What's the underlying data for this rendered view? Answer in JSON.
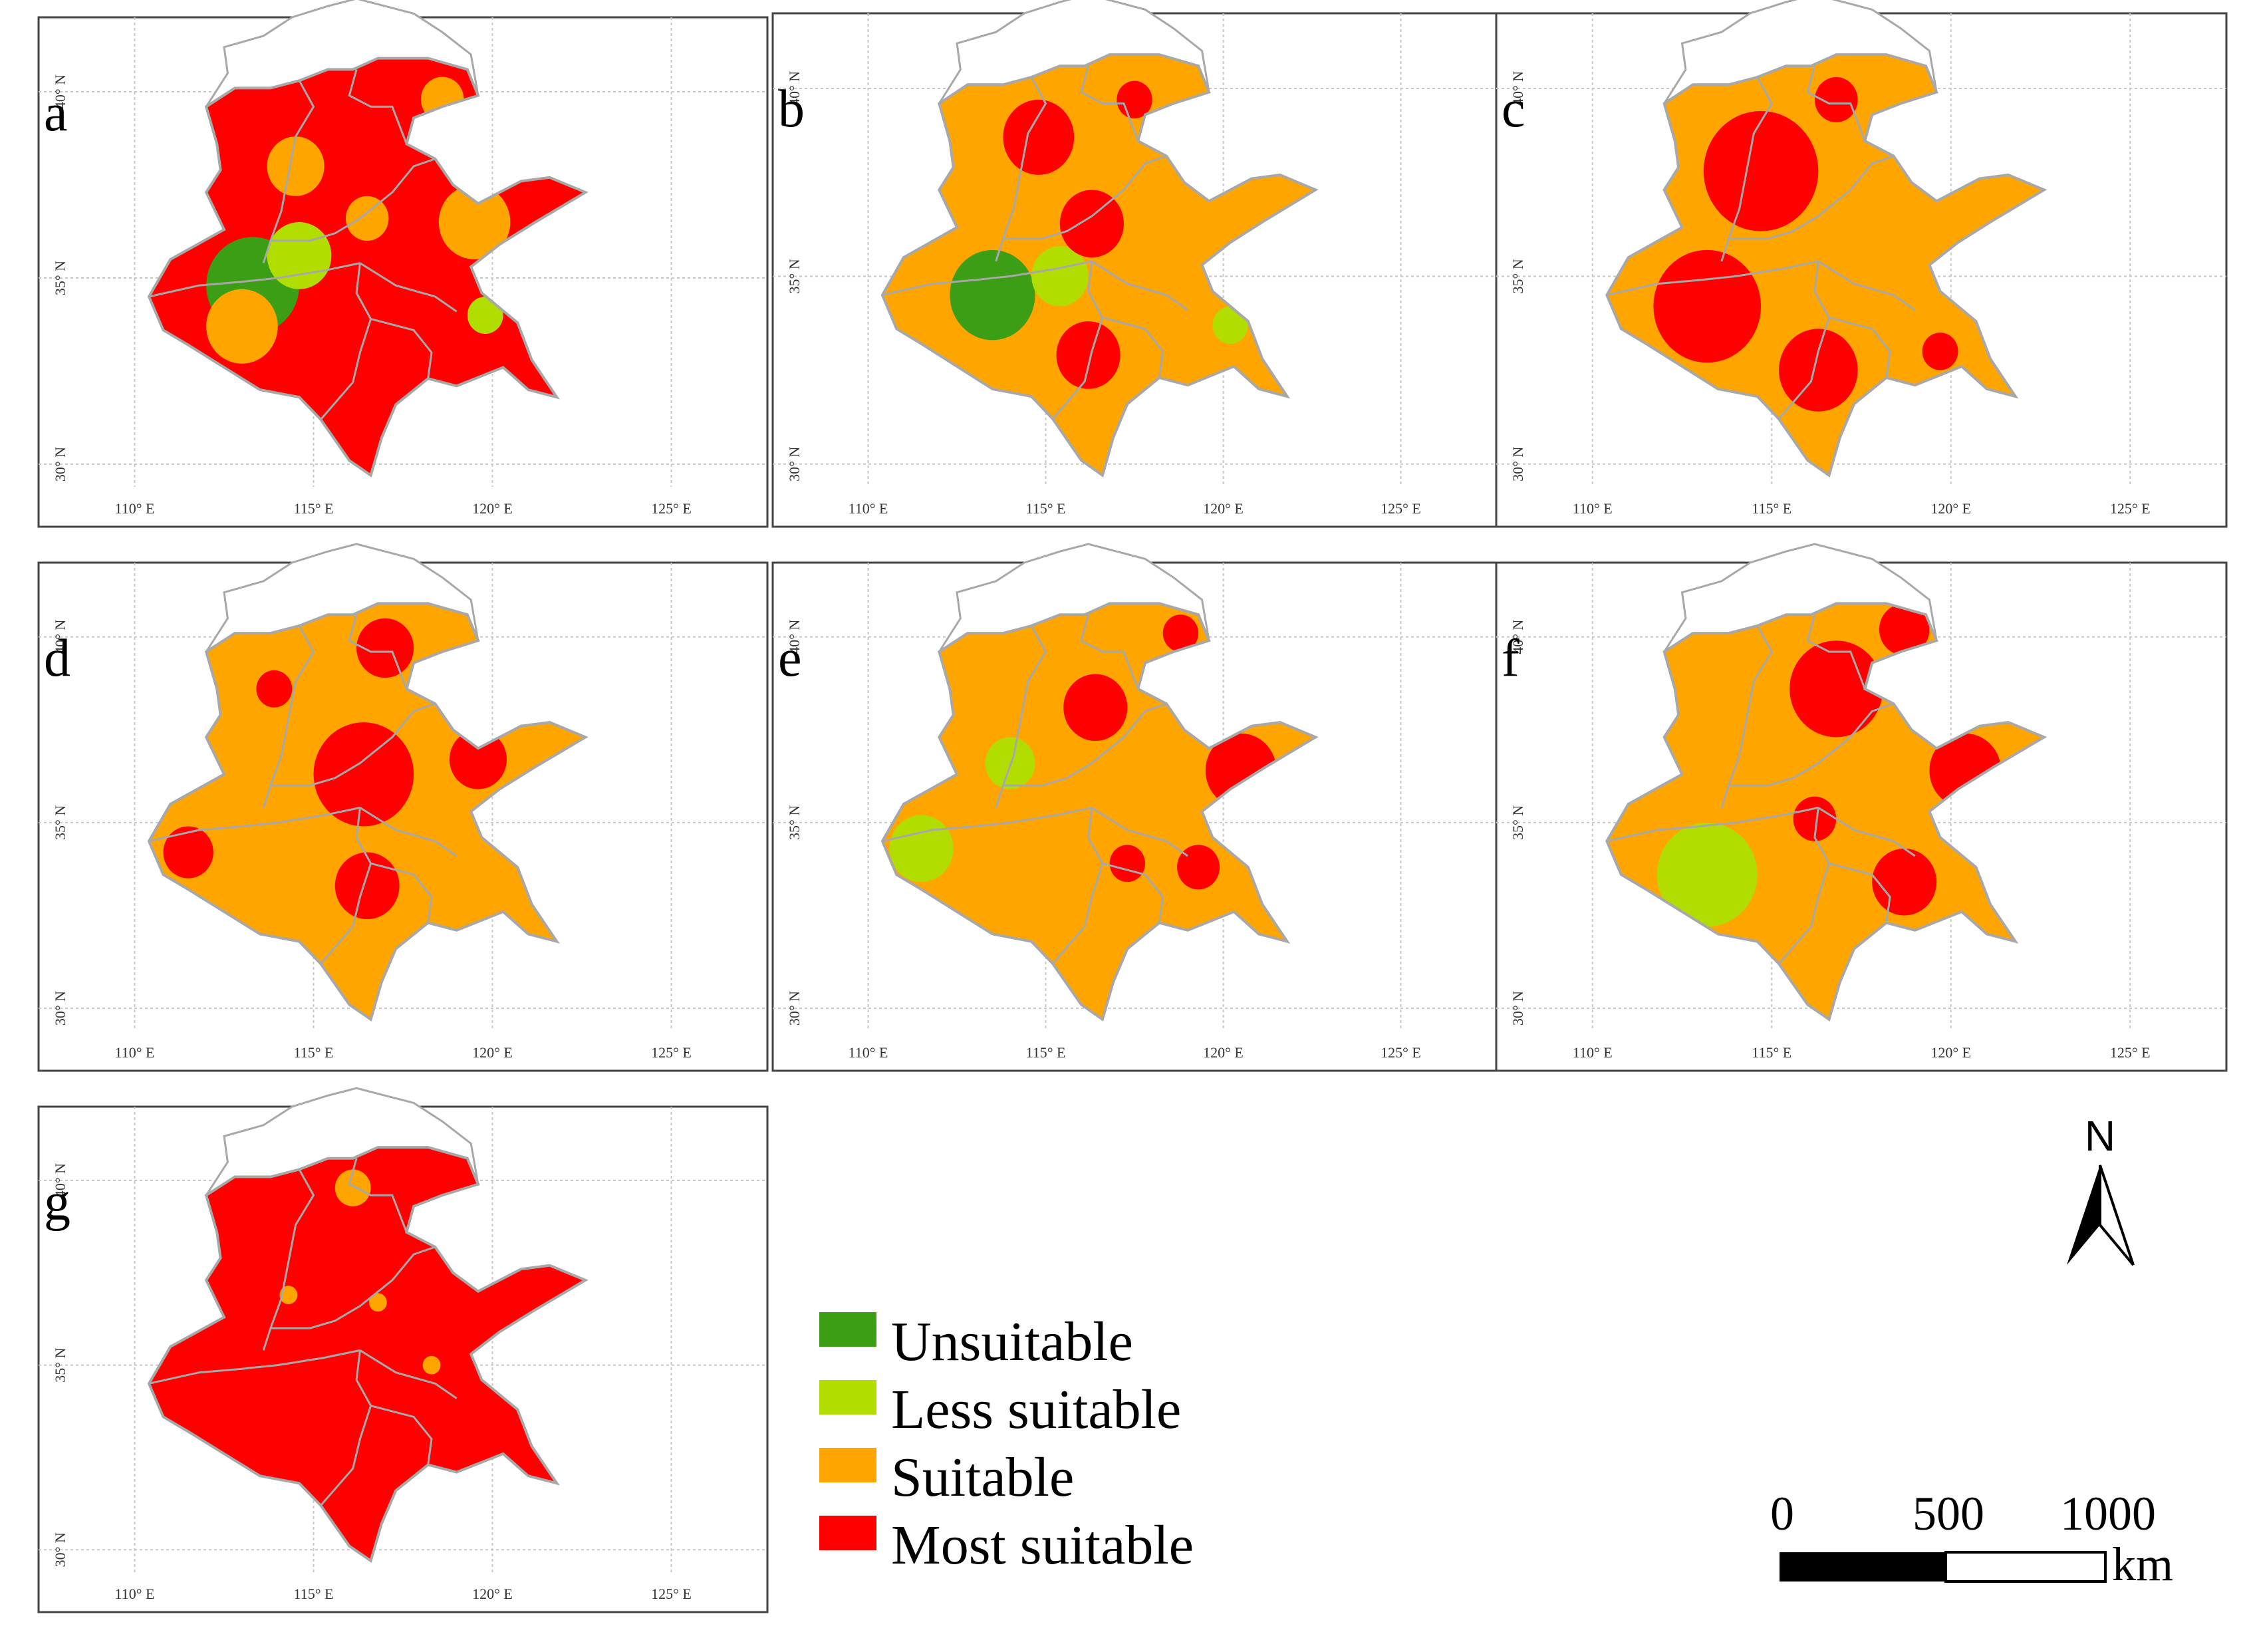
{
  "colors": {
    "Unsuitable": "#3c9e14",
    "Less suitable": "#b2dd00",
    "Suitable": "#ffa500",
    "Most suitable": "#ff0000",
    "boundary": "#a8a8a8",
    "outline": "#555555"
  },
  "axes": {
    "lon_ticks": [
      "110° E",
      "115° E",
      "120° E",
      "125° E"
    ],
    "lat_ticks": [
      "30° N",
      "35° N",
      "40° N"
    ]
  },
  "panels": [
    {
      "label": "a",
      "base": "Most suitable",
      "blobs": [
        {
          "lon": 113.3,
          "lat": 34.8,
          "r": 1.3,
          "cls": "Unsuitable"
        },
        {
          "lon": 114.6,
          "lat": 35.6,
          "r": 0.9,
          "cls": "Less suitable"
        },
        {
          "lon": 113.0,
          "lat": 33.7,
          "r": 1.0,
          "cls": "Suitable"
        },
        {
          "lon": 114.5,
          "lat": 38.0,
          "r": 0.8,
          "cls": "Suitable"
        },
        {
          "lon": 119.5,
          "lat": 36.5,
          "r": 1.0,
          "cls": "Suitable"
        },
        {
          "lon": 118.6,
          "lat": 39.8,
          "r": 0.6,
          "cls": "Suitable"
        },
        {
          "lon": 116.5,
          "lat": 36.6,
          "r": 0.6,
          "cls": "Suitable"
        },
        {
          "lon": 119.8,
          "lat": 34.0,
          "r": 0.5,
          "cls": "Less suitable"
        }
      ]
    },
    {
      "label": "b",
      "base": "Suitable",
      "blobs": [
        {
          "lon": 113.5,
          "lat": 34.5,
          "r": 1.2,
          "cls": "Unsuitable"
        },
        {
          "lon": 115.4,
          "lat": 35.0,
          "r": 0.8,
          "cls": "Less suitable"
        },
        {
          "lon": 114.8,
          "lat": 38.7,
          "r": 1.0,
          "cls": "Most suitable"
        },
        {
          "lon": 116.3,
          "lat": 36.4,
          "r": 0.9,
          "cls": "Most suitable"
        },
        {
          "lon": 116.2,
          "lat": 32.9,
          "r": 0.9,
          "cls": "Most suitable"
        },
        {
          "lon": 117.5,
          "lat": 39.7,
          "r": 0.5,
          "cls": "Most suitable"
        },
        {
          "lon": 120.2,
          "lat": 33.7,
          "r": 0.5,
          "cls": "Less suitable"
        }
      ]
    },
    {
      "label": "c",
      "base": "Suitable",
      "blobs": [
        {
          "lon": 114.7,
          "lat": 37.8,
          "r": 1.6,
          "cls": "Most suitable"
        },
        {
          "lon": 113.2,
          "lat": 34.2,
          "r": 1.5,
          "cls": "Most suitable"
        },
        {
          "lon": 116.3,
          "lat": 32.5,
          "r": 1.1,
          "cls": "Most suitable"
        },
        {
          "lon": 116.8,
          "lat": 39.7,
          "r": 0.6,
          "cls": "Most suitable"
        },
        {
          "lon": 119.7,
          "lat": 33.0,
          "r": 0.5,
          "cls": "Most suitable"
        }
      ]
    },
    {
      "label": "d",
      "base": "Suitable",
      "blobs": [
        {
          "lon": 116.4,
          "lat": 36.3,
          "r": 1.4,
          "cls": "Most suitable"
        },
        {
          "lon": 117.0,
          "lat": 39.7,
          "r": 0.8,
          "cls": "Most suitable"
        },
        {
          "lon": 116.5,
          "lat": 33.3,
          "r": 0.9,
          "cls": "Most suitable"
        },
        {
          "lon": 111.5,
          "lat": 34.2,
          "r": 0.7,
          "cls": "Most suitable"
        },
        {
          "lon": 119.6,
          "lat": 36.7,
          "r": 0.8,
          "cls": "Most suitable"
        },
        {
          "lon": 113.9,
          "lat": 38.6,
          "r": 0.5,
          "cls": "Most suitable"
        }
      ]
    },
    {
      "label": "e",
      "base": "Suitable",
      "blobs": [
        {
          "lon": 111.5,
          "lat": 34.3,
          "r": 0.9,
          "cls": "Less suitable"
        },
        {
          "lon": 114.0,
          "lat": 36.6,
          "r": 0.7,
          "cls": "Less suitable"
        },
        {
          "lon": 120.5,
          "lat": 36.4,
          "r": 1.0,
          "cls": "Most suitable"
        },
        {
          "lon": 116.4,
          "lat": 38.1,
          "r": 0.9,
          "cls": "Most suitable"
        },
        {
          "lon": 119.3,
          "lat": 33.8,
          "r": 0.6,
          "cls": "Most suitable"
        },
        {
          "lon": 117.3,
          "lat": 33.9,
          "r": 0.5,
          "cls": "Most suitable"
        },
        {
          "lon": 118.8,
          "lat": 40.1,
          "r": 0.5,
          "cls": "Most suitable"
        }
      ]
    },
    {
      "label": "f",
      "base": "Suitable",
      "blobs": [
        {
          "lon": 113.2,
          "lat": 33.6,
          "r": 1.4,
          "cls": "Less suitable"
        },
        {
          "lon": 116.8,
          "lat": 38.6,
          "r": 1.3,
          "cls": "Most suitable"
        },
        {
          "lon": 120.4,
          "lat": 36.4,
          "r": 1.0,
          "cls": "Most suitable"
        },
        {
          "lon": 118.7,
          "lat": 33.4,
          "r": 0.9,
          "cls": "Most suitable"
        },
        {
          "lon": 118.7,
          "lat": 40.2,
          "r": 0.7,
          "cls": "Most suitable"
        },
        {
          "lon": 116.2,
          "lat": 35.1,
          "r": 0.6,
          "cls": "Most suitable"
        }
      ]
    },
    {
      "label": "g",
      "base": "Most suitable",
      "blobs": [
        {
          "lon": 116.1,
          "lat": 39.8,
          "r": 0.5,
          "cls": "Suitable"
        },
        {
          "lon": 116.8,
          "lat": 36.7,
          "r": 0.25,
          "cls": "Suitable"
        },
        {
          "lon": 118.3,
          "lat": 35.0,
          "r": 0.25,
          "cls": "Suitable"
        },
        {
          "lon": 114.3,
          "lat": 36.9,
          "r": 0.25,
          "cls": "Suitable"
        }
      ]
    }
  ],
  "legend": {
    "items": [
      {
        "key": "Unsuitable",
        "label": "Unsuitable"
      },
      {
        "key": "Less suitable",
        "label": "Less suitable"
      },
      {
        "key": "Suitable",
        "label": "Suitable"
      },
      {
        "key": "Most suitable",
        "label": "Most suitable"
      }
    ]
  },
  "north_arrow": {
    "label": "N"
  },
  "scale_bar": {
    "ticks": [
      "0",
      "500",
      "1000"
    ],
    "unit": "km"
  }
}
